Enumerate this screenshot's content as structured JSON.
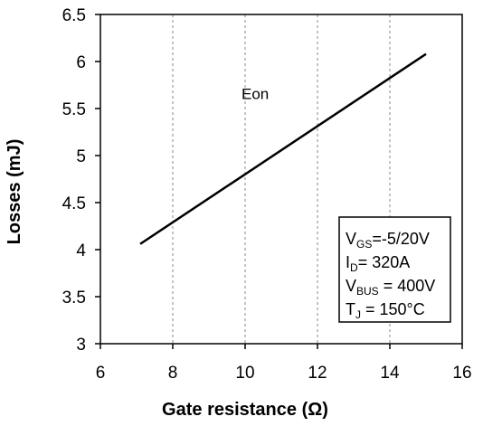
{
  "chart_data": {
    "type": "line",
    "title": "",
    "xlabel": "Gate resistance (Ω)",
    "ylabel": "Losses (mJ)",
    "xlim": [
      6,
      16
    ],
    "ylim": [
      3,
      6.5
    ],
    "xticks": [
      "6",
      "8",
      "10",
      "12",
      "14",
      "16"
    ],
    "yticks": [
      "3",
      "3.5",
      "4",
      "4.5",
      "5",
      "5.5",
      "6",
      "6.5"
    ],
    "grid": "vertical dashed",
    "series": [
      {
        "name": "Eon",
        "x": [
          7.1,
          15.0
        ],
        "y": [
          4.06,
          6.08
        ]
      }
    ],
    "annotation_box": {
      "lines": [
        {
          "main": "V",
          "sub": "GS",
          "rest": "=-5/20V"
        },
        {
          "main": "I",
          "sub": "D",
          "rest": "= 320A"
        },
        {
          "main": "V",
          "sub": "BUS",
          "rest": " = 400V"
        },
        {
          "main": "T",
          "sub": "J",
          "rest": " = 150°C"
        }
      ]
    }
  }
}
